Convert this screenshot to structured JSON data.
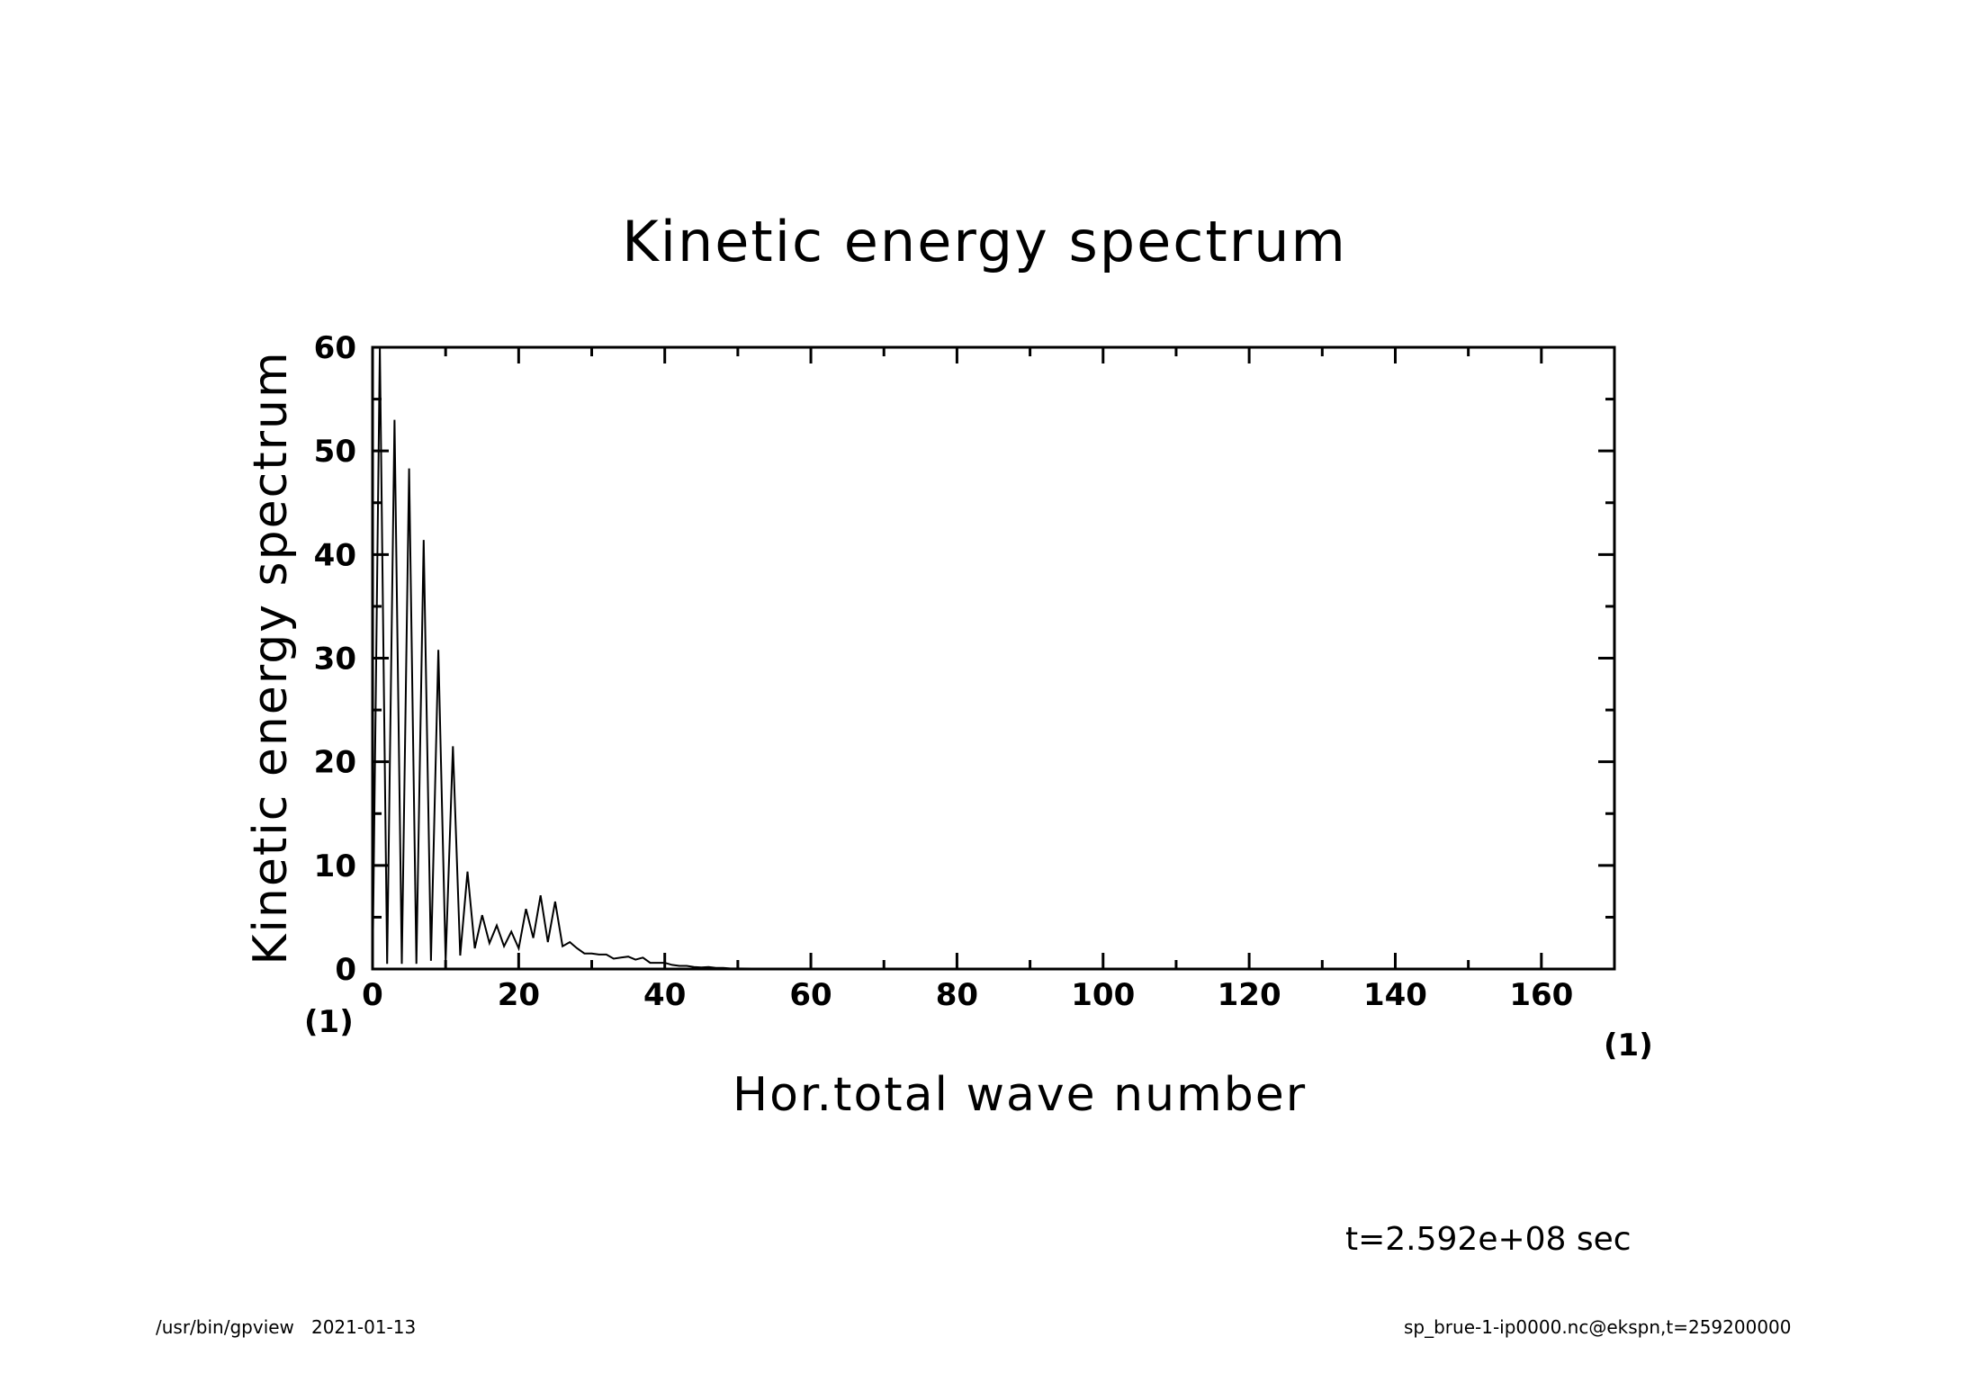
{
  "chart_data": {
    "type": "line",
    "title": "Kinetic energy spectrum",
    "xlabel": "Hor.total wave number",
    "ylabel": "Kinetic energy spectrum",
    "x_unit": "(1)",
    "y_unit": "(1)",
    "xlim": [
      0,
      170
    ],
    "ylim": [
      0,
      60
    ],
    "x_ticks": [
      0,
      20,
      40,
      60,
      80,
      100,
      120,
      140,
      160
    ],
    "x_tick_labels": [
      "0",
      "20",
      "40",
      "60",
      "80",
      "100",
      "120",
      "140",
      "160"
    ],
    "y_ticks": [
      0,
      10,
      20,
      30,
      40,
      50,
      60
    ],
    "y_tick_labels": [
      "0",
      "10",
      "20",
      "30",
      "40",
      "50",
      "60"
    ],
    "series": [
      {
        "name": "Kinetic energy spectrum",
        "x": [
          0,
          1,
          2,
          3,
          4,
          5,
          6,
          7,
          8,
          9,
          10,
          11,
          12,
          13,
          14,
          15,
          16,
          17,
          18,
          19,
          20,
          21,
          22,
          23,
          24,
          25,
          26,
          27,
          28,
          29,
          30,
          31,
          32,
          33,
          34,
          35,
          36,
          37,
          38,
          39,
          40,
          41,
          42,
          43,
          44,
          45,
          46,
          47,
          48,
          49,
          50,
          52,
          54,
          56,
          58,
          60,
          65,
          70,
          80,
          100,
          120,
          140,
          160,
          170
        ],
        "y": [
          0,
          60,
          0.5,
          53,
          0.5,
          48.3,
          0.5,
          41.4,
          0.8,
          30.8,
          0.8,
          21.5,
          1.3,
          9.4,
          2,
          5.2,
          2.5,
          4.2,
          2.2,
          3.6,
          2,
          5.8,
          3,
          7.1,
          2.6,
          6.5,
          2.2,
          2.6,
          2,
          1.5,
          1.5,
          1.4,
          1.4,
          1,
          1.1,
          1.2,
          0.9,
          1.1,
          0.6,
          0.6,
          0.6,
          0.4,
          0.3,
          0.3,
          0.2,
          0.15,
          0.2,
          0.1,
          0.1,
          0.05,
          0.05,
          0.04,
          0.03,
          0.02,
          0.01,
          0.01,
          0,
          0,
          0,
          0,
          0,
          0,
          0,
          0
        ]
      }
    ]
  },
  "time_label": "t=2.592e+08 sec",
  "footer": {
    "program": "/usr/bin/gpview",
    "date": "2021-01-13",
    "source": "sp_brue-1-ip0000.nc@ekspn,t=259200000"
  }
}
